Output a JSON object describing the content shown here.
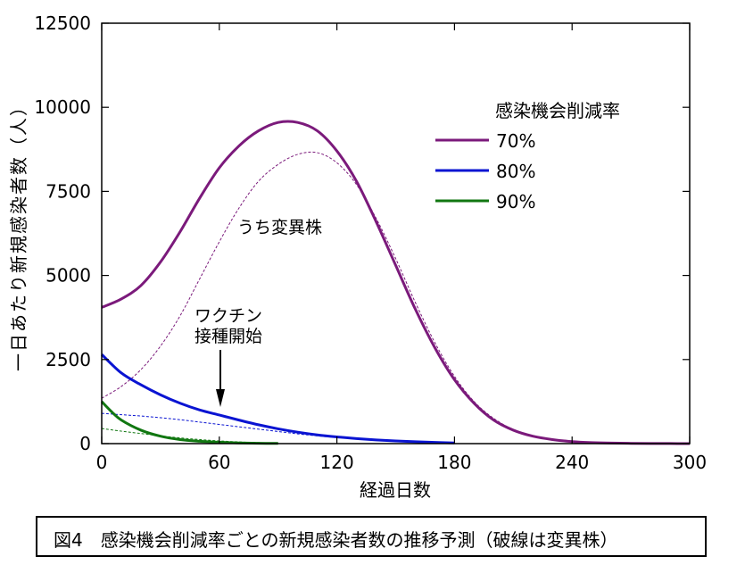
{
  "chart_data": {
    "type": "line",
    "title": "",
    "xlabel": "経過日数",
    "ylabel": "一日あたり新規感染者数（人）",
    "xlim": [
      0,
      300
    ],
    "ylim": [
      0,
      12500
    ],
    "xticks": [
      0,
      60,
      120,
      180,
      240,
      300
    ],
    "yticks": [
      0,
      2500,
      5000,
      7500,
      10000,
      12500
    ],
    "xtick_labels": [
      "0",
      "60",
      "120",
      "180",
      "240",
      "300"
    ],
    "ytick_labels": [
      "0",
      "2500",
      "5000",
      "7500",
      "10000",
      "12500"
    ],
    "grid": false,
    "legend": {
      "title": "感染機会削減率",
      "placement": "top-right",
      "entries": [
        {
          "label": "70%",
          "color": "#7b1a7b"
        },
        {
          "label": "80%",
          "color": "#0a14d2"
        },
        {
          "label": "90%",
          "color": "#117711"
        }
      ]
    },
    "series": [
      {
        "name": "70%",
        "style": "solid",
        "color": "#7b1a7b",
        "x": [
          0,
          10,
          20,
          30,
          40,
          50,
          60,
          70,
          80,
          90,
          100,
          110,
          120,
          130,
          140,
          150,
          160,
          170,
          180,
          190,
          200,
          210,
          220,
          230,
          240,
          250,
          260,
          270,
          280,
          290,
          300
        ],
        "y": [
          4050,
          4300,
          4700,
          5400,
          6300,
          7300,
          8200,
          8850,
          9300,
          9550,
          9550,
          9300,
          8700,
          7800,
          6600,
          5300,
          4000,
          2850,
          1900,
          1200,
          700,
          400,
          220,
          120,
          60,
          30,
          15,
          8,
          4,
          2,
          1
        ]
      },
      {
        "name": "70%",
        "style": "dashed",
        "color": "#7b1a7b",
        "x": [
          0,
          10,
          20,
          30,
          40,
          50,
          60,
          70,
          80,
          90,
          100,
          110,
          120,
          130,
          140,
          150,
          160,
          170,
          180,
          190,
          200,
          210,
          220,
          230,
          240,
          250,
          260,
          270,
          280,
          290,
          300
        ],
        "y": [
          1350,
          1700,
          2200,
          2900,
          3800,
          4900,
          6000,
          7000,
          7800,
          8300,
          8600,
          8650,
          8350,
          7700,
          6700,
          5500,
          4200,
          3000,
          2000,
          1250,
          750,
          420,
          230,
          120,
          60,
          30,
          15,
          8,
          4,
          2,
          1
        ]
      },
      {
        "name": "80%",
        "style": "solid",
        "color": "#0a14d2",
        "x": [
          0,
          10,
          20,
          30,
          40,
          50,
          60,
          70,
          80,
          90,
          100,
          110,
          120,
          130,
          140,
          150,
          160,
          170,
          180
        ],
        "y": [
          2650,
          2100,
          1750,
          1450,
          1200,
          1000,
          850,
          700,
          560,
          440,
          340,
          260,
          200,
          150,
          110,
          80,
          55,
          35,
          20
        ]
      },
      {
        "name": "80%",
        "style": "dashed",
        "color": "#0a14d2",
        "x": [
          0,
          10,
          20,
          30,
          40,
          50,
          60,
          70,
          80,
          90,
          100,
          110,
          120,
          130,
          140,
          150,
          160,
          170,
          180
        ],
        "y": [
          900,
          860,
          820,
          770,
          710,
          640,
          570,
          500,
          430,
          360,
          290,
          230,
          180,
          140,
          100,
          70,
          45,
          30,
          15
        ]
      },
      {
        "name": "90%",
        "style": "solid",
        "color": "#117711",
        "x": [
          0,
          5,
          10,
          20,
          30,
          40,
          50,
          60,
          70,
          80,
          90
        ],
        "y": [
          1250,
          950,
          700,
          400,
          220,
          120,
          70,
          40,
          20,
          10,
          5
        ]
      },
      {
        "name": "90%",
        "style": "dashed",
        "color": "#117711",
        "x": [
          0,
          10,
          20,
          30,
          40,
          50,
          60,
          70,
          80,
          90
        ],
        "y": [
          450,
          370,
          300,
          230,
          170,
          120,
          80,
          50,
          30,
          15
        ]
      }
    ],
    "annotations": [
      {
        "text": "うち変異株"
      },
      {
        "text": "ワクチン"
      },
      {
        "text": "接種開始",
        "arrow_x": 60
      }
    ]
  },
  "caption": "図4　感染機会削減率ごとの新規感染者数の推移予測（破線は変異株）"
}
